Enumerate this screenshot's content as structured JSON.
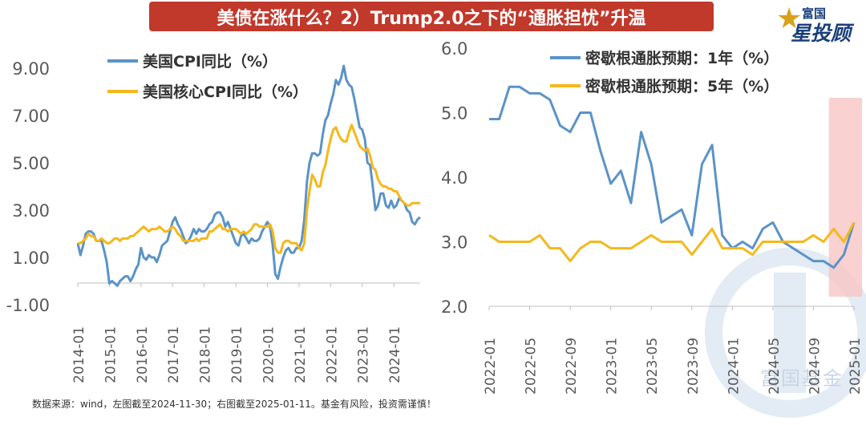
{
  "title": "美债在涨什么？2）Trump2.0之下的“通胀担忧”升温",
  "logo": {
    "top": "富国",
    "main": "星投顾"
  },
  "watermark": "富国基金",
  "source": "数据来源：wind，左图截至2024-11-30；右图截至2025-01-11。基金有风险，投资需谨慎！",
  "colors": {
    "blue": "#5b93c7",
    "orange": "#f5b81c",
    "title_bg": "#c0392b",
    "highlight": "#f7c6c6"
  },
  "chart_data": [
    {
      "type": "line",
      "title": "",
      "xlabel": "",
      "ylabel": "",
      "ylim": [
        -1.0,
        9.0
      ],
      "yticks": [
        "9.00",
        "7.00",
        "5.00",
        "3.00",
        "1.00",
        "-1.00"
      ],
      "yvalues": [
        9,
        7,
        5,
        3,
        1,
        -1
      ],
      "xticks": [
        "2014-01",
        "2015-01",
        "2016-01",
        "2017-01",
        "2018-01",
        "2019-01",
        "2020-01",
        "2021-01",
        "2022-01",
        "2023-01",
        "2024-01"
      ],
      "legend": "top-left",
      "grid": false,
      "series": [
        {
          "name": "美国CPI同比（%）",
          "color": "#5b93c7",
          "values": [
            1.6,
            1.1,
            1.5,
            2.0,
            2.1,
            2.1,
            2.0,
            1.7,
            1.7,
            1.7,
            1.3,
            0.8,
            -0.1,
            0.0,
            -0.1,
            -0.2,
            0.0,
            0.1,
            0.2,
            0.2,
            0.0,
            0.2,
            0.5,
            0.7,
            1.4,
            1.0,
            0.9,
            1.1,
            1.0,
            1.0,
            0.8,
            1.1,
            1.5,
            1.6,
            1.7,
            2.1,
            2.5,
            2.7,
            2.4,
            2.2,
            1.9,
            1.6,
            1.7,
            1.9,
            2.2,
            2.0,
            2.2,
            2.1,
            2.1,
            2.2,
            2.4,
            2.5,
            2.8,
            2.9,
            2.9,
            2.7,
            2.3,
            2.5,
            2.2,
            1.9,
            1.6,
            1.5,
            1.9,
            2.0,
            1.8,
            1.6,
            1.8,
            1.7,
            1.7,
            1.8,
            2.1,
            2.3,
            2.5,
            2.3,
            1.5,
            0.3,
            0.1,
            0.6,
            1.0,
            1.3,
            1.4,
            1.2,
            1.2,
            1.4,
            1.4,
            1.7,
            2.6,
            4.2,
            5.0,
            5.4,
            5.4,
            5.3,
            5.4,
            6.2,
            6.8,
            7.0,
            7.5,
            7.9,
            8.5,
            8.3,
            8.6,
            9.1,
            8.5,
            8.3,
            8.2,
            7.7,
            7.1,
            6.5,
            6.4,
            6.0,
            5.0,
            4.9,
            4.0,
            3.0,
            3.2,
            3.7,
            3.7,
            3.2,
            3.1,
            3.4,
            3.1,
            3.2,
            3.5,
            3.4,
            3.3,
            3.0,
            2.9,
            2.5,
            2.4,
            2.6,
            2.7
          ]
        },
        {
          "name": "美国核心CPI同比（%）",
          "color": "#f5b81c",
          "values": [
            1.6,
            1.6,
            1.7,
            1.8,
            2.0,
            1.9,
            1.9,
            1.7,
            1.7,
            1.8,
            1.7,
            1.6,
            1.6,
            1.7,
            1.8,
            1.8,
            1.7,
            1.8,
            1.8,
            1.8,
            1.9,
            1.9,
            2.0,
            2.1,
            2.2,
            2.3,
            2.2,
            2.1,
            2.2,
            2.2,
            2.2,
            2.3,
            2.2,
            2.1,
            2.1,
            2.2,
            2.3,
            2.2,
            2.0,
            1.9,
            1.7,
            1.7,
            1.7,
            1.7,
            1.7,
            1.8,
            1.7,
            1.8,
            1.8,
            1.8,
            2.1,
            2.1,
            2.2,
            2.3,
            2.4,
            2.2,
            2.2,
            2.1,
            2.2,
            2.2,
            2.2,
            2.1,
            2.0,
            2.1,
            2.0,
            2.1,
            2.2,
            2.4,
            2.4,
            2.3,
            2.3,
            2.3,
            2.3,
            2.4,
            2.1,
            1.4,
            1.2,
            1.2,
            1.6,
            1.7,
            1.7,
            1.6,
            1.6,
            1.6,
            1.4,
            1.3,
            1.6,
            3.0,
            3.8,
            4.5,
            4.3,
            4.0,
            4.0,
            4.6,
            4.9,
            5.5,
            6.0,
            6.4,
            6.5,
            6.2,
            6.0,
            5.9,
            5.9,
            6.3,
            6.6,
            6.3,
            6.0,
            5.7,
            5.6,
            5.5,
            5.6,
            5.3,
            4.8,
            4.7,
            4.3,
            4.1,
            4.0,
            4.0,
            3.9,
            3.9,
            3.8,
            3.8,
            3.6,
            3.4,
            3.3,
            3.2,
            3.2,
            3.3,
            3.3,
            3.3,
            3.3
          ]
        }
      ]
    },
    {
      "type": "line",
      "title": "",
      "xlabel": "",
      "ylabel": "",
      "ylim": [
        2.0,
        6.0
      ],
      "yticks": [
        "6.0",
        "5.0",
        "4.0",
        "3.0",
        "2.0"
      ],
      "yvalues": [
        6,
        5,
        4,
        3,
        2
      ],
      "xticks": [
        "2022-01",
        "2022-05",
        "2022-09",
        "2023-01",
        "2023-05",
        "2023-09",
        "2024-01",
        "2024-05",
        "2024-09",
        "2025-01"
      ],
      "legend": "top-right",
      "grid": false,
      "highlight": {
        "from": "2024-11",
        "to": "2025-01"
      },
      "series": [
        {
          "name": "密歇根通胀预期：1年（%）",
          "color": "#5b93c7",
          "values": [
            4.9,
            4.9,
            5.4,
            5.4,
            5.3,
            5.3,
            5.2,
            4.8,
            4.7,
            5.0,
            5.0,
            4.4,
            3.9,
            4.1,
            3.6,
            4.7,
            4.2,
            3.3,
            3.4,
            3.5,
            3.1,
            4.2,
            4.5,
            3.1,
            2.9,
            3.0,
            2.9,
            3.2,
            3.3,
            3.0,
            2.9,
            2.8,
            2.7,
            2.7,
            2.6,
            2.8,
            3.3
          ]
        },
        {
          "name": "密歇根通胀预期：5年（%）",
          "color": "#f5b81c",
          "values": [
            3.1,
            3.0,
            3.0,
            3.0,
            3.0,
            3.1,
            2.9,
            2.9,
            2.7,
            2.9,
            3.0,
            3.0,
            2.9,
            2.9,
            2.9,
            3.0,
            3.1,
            3.0,
            3.0,
            3.0,
            2.8,
            3.0,
            3.2,
            2.9,
            2.9,
            2.9,
            2.8,
            3.0,
            3.0,
            3.0,
            3.0,
            3.0,
            3.1,
            3.0,
            3.2,
            3.0,
            3.3
          ]
        }
      ]
    }
  ]
}
